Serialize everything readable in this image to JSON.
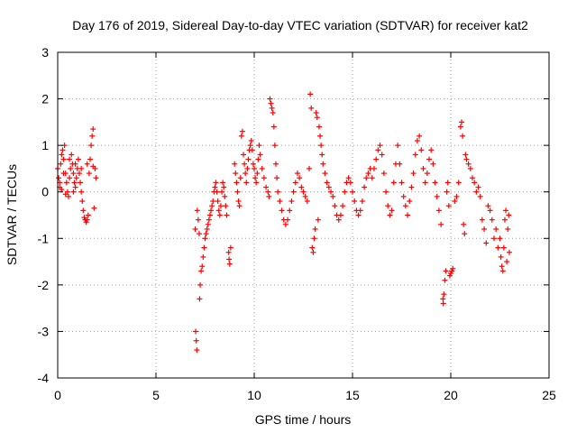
{
  "chart_data": {
    "type": "scatter",
    "title": "Day 176 of 2019, Sidereal Day-to-day VTEC variation (SDTVAR) for receiver kat2",
    "xlabel": "GPS time / hours",
    "ylabel": "SDTVAR / TECUs",
    "xlim": [
      0,
      25
    ],
    "ylim": [
      -4,
      3
    ],
    "xticks": [
      "0",
      "5",
      "10",
      "15",
      "20",
      "25"
    ],
    "yticks": [
      "-4",
      "-3",
      "-2",
      "-1",
      "0",
      "1",
      "2",
      "3"
    ],
    "grid": true,
    "marker": "+",
    "color": "#ff0000",
    "series": [
      {
        "name": "SDTVAR",
        "points": [
          [
            0.0,
            0.5
          ],
          [
            0.05,
            0.3
          ],
          [
            0.1,
            0.1
          ],
          [
            0.15,
            0.6
          ],
          [
            0.2,
            0.8
          ],
          [
            0.25,
            0.9
          ],
          [
            0.3,
            0.7
          ],
          [
            0.35,
            1.0
          ],
          [
            0.4,
            0.4
          ],
          [
            0.45,
            0.2
          ],
          [
            0.5,
            0.0
          ],
          [
            0.55,
            -0.1
          ],
          [
            0.6,
            0.3
          ],
          [
            0.65,
            0.5
          ],
          [
            0.7,
            0.8
          ],
          [
            0.75,
            0.6
          ],
          [
            0.8,
            0.4
          ],
          [
            0.85,
            0.2
          ],
          [
            0.9,
            0.1
          ],
          [
            0.95,
            0.3
          ],
          [
            1.0,
            0.5
          ],
          [
            1.05,
            0.7
          ],
          [
            1.1,
            0.4
          ],
          [
            1.15,
            0.2
          ],
          [
            1.2,
            0.0
          ],
          [
            1.25,
            -0.2
          ],
          [
            1.3,
            -0.4
          ],
          [
            1.35,
            -0.55
          ],
          [
            1.4,
            -0.6
          ],
          [
            1.45,
            -0.65
          ],
          [
            1.5,
            -0.6
          ],
          [
            1.55,
            -0.5
          ],
          [
            1.6,
            0.4
          ],
          [
            1.65,
            0.7
          ],
          [
            1.7,
            1.0
          ],
          [
            1.75,
            1.2
          ],
          [
            1.8,
            1.35
          ],
          [
            1.85,
            -0.35
          ],
          [
            1.9,
            0.5
          ],
          [
            1.95,
            0.3
          ],
          [
            0.1,
            0.2
          ],
          [
            0.3,
            0.4
          ],
          [
            0.6,
            0.7
          ],
          [
            0.9,
            0.6
          ],
          [
            1.2,
            0.5
          ],
          [
            1.5,
            0.6
          ],
          [
            1.8,
            0.55
          ],
          [
            0.2,
            0.05
          ],
          [
            0.4,
            -0.05
          ],
          [
            0.8,
            0.0
          ],
          [
            7.0,
            -0.8
          ],
          [
            7.02,
            -3.0
          ],
          [
            7.05,
            -3.2
          ],
          [
            7.08,
            -3.4
          ],
          [
            7.1,
            -0.4
          ],
          [
            7.15,
            -0.6
          ],
          [
            7.2,
            -0.9
          ],
          [
            7.3,
            -1.7
          ],
          [
            7.35,
            -1.6
          ],
          [
            7.4,
            -1.4
          ],
          [
            7.45,
            -1.2
          ],
          [
            7.5,
            -1.0
          ],
          [
            7.55,
            -0.9
          ],
          [
            7.6,
            -0.8
          ],
          [
            7.65,
            -0.7
          ],
          [
            7.7,
            -0.6
          ],
          [
            7.75,
            -0.5
          ],
          [
            7.8,
            -0.4
          ],
          [
            7.85,
            -0.3
          ],
          [
            7.9,
            -0.2
          ],
          [
            7.95,
            0.0
          ],
          [
            8.0,
            0.1
          ],
          [
            8.05,
            0.2
          ],
          [
            8.1,
            0.0
          ],
          [
            8.15,
            -0.2
          ],
          [
            8.2,
            -0.4
          ],
          [
            8.25,
            -0.5
          ],
          [
            8.3,
            -0.3
          ],
          [
            8.35,
            0.0
          ],
          [
            8.4,
            0.2
          ],
          [
            8.45,
            0.1
          ],
          [
            8.5,
            -0.1
          ],
          [
            8.55,
            -0.3
          ],
          [
            8.6,
            -0.5
          ],
          [
            8.7,
            -1.3
          ],
          [
            8.72,
            -1.45
          ],
          [
            8.75,
            -1.55
          ],
          [
            8.8,
            -1.2
          ],
          [
            7.25,
            -2.0
          ],
          [
            7.22,
            -2.3
          ],
          [
            9.0,
            0.6
          ],
          [
            9.05,
            0.4
          ],
          [
            9.1,
            0.2
          ],
          [
            9.15,
            0.0
          ],
          [
            9.2,
            -0.2
          ],
          [
            9.25,
            -0.3
          ],
          [
            9.3,
            0.3
          ],
          [
            9.35,
            1.2
          ],
          [
            9.4,
            1.3
          ],
          [
            9.45,
            0.8
          ],
          [
            9.5,
            0.6
          ],
          [
            9.55,
            0.4
          ],
          [
            9.6,
            0.2
          ],
          [
            9.65,
            0.5
          ],
          [
            9.7,
            0.7
          ],
          [
            9.75,
            0.9
          ],
          [
            9.8,
            1.0
          ],
          [
            9.85,
            1.1
          ],
          [
            9.9,
            0.9
          ],
          [
            9.95,
            0.6
          ],
          [
            10.0,
            0.5
          ],
          [
            10.05,
            0.3
          ],
          [
            10.1,
            0.2
          ],
          [
            10.15,
            0.4
          ],
          [
            10.2,
            0.7
          ],
          [
            10.25,
            1.0
          ],
          [
            10.3,
            0.8
          ],
          [
            10.4,
            0.5
          ],
          [
            10.5,
            0.3
          ],
          [
            10.6,
            0.1
          ],
          [
            10.7,
            0.0
          ],
          [
            10.75,
            -0.1
          ],
          [
            10.8,
            2.0
          ],
          [
            10.85,
            1.9
          ],
          [
            10.9,
            1.8
          ],
          [
            10.95,
            1.7
          ],
          [
            11.0,
            1.4
          ],
          [
            11.05,
            1.0
          ],
          [
            11.1,
            0.6
          ],
          [
            11.15,
            0.3
          ],
          [
            11.2,
            0.0
          ],
          [
            11.3,
            -0.2
          ],
          [
            11.4,
            -0.4
          ],
          [
            11.5,
            -0.6
          ],
          [
            11.6,
            -0.7
          ],
          [
            11.7,
            -0.6
          ],
          [
            11.8,
            -0.4
          ],
          [
            11.9,
            -0.2
          ],
          [
            12.0,
            0.0
          ],
          [
            12.1,
            0.2
          ],
          [
            12.2,
            0.4
          ],
          [
            12.3,
            0.3
          ],
          [
            12.4,
            0.1
          ],
          [
            12.5,
            0.0
          ],
          [
            12.6,
            -0.1
          ],
          [
            12.7,
            -0.2
          ],
          [
            12.8,
            0.5
          ],
          [
            12.85,
            2.1
          ],
          [
            12.9,
            1.8
          ],
          [
            12.95,
            -1.2
          ],
          [
            13.0,
            -1.3
          ],
          [
            13.05,
            -1.0
          ],
          [
            13.1,
            -0.8
          ],
          [
            13.15,
            1.7
          ],
          [
            13.2,
            1.6
          ],
          [
            13.25,
            -0.6
          ],
          [
            13.3,
            1.4
          ],
          [
            13.35,
            1.2
          ],
          [
            13.4,
            1.0
          ],
          [
            13.45,
            0.8
          ],
          [
            13.5,
            0.6
          ],
          [
            13.6,
            0.4
          ],
          [
            13.7,
            0.2
          ],
          [
            13.8,
            0.1
          ],
          [
            13.9,
            0.0
          ],
          [
            14.0,
            -0.1
          ],
          [
            14.1,
            -0.3
          ],
          [
            14.2,
            -0.5
          ],
          [
            14.3,
            -0.6
          ],
          [
            14.4,
            -0.5
          ],
          [
            14.5,
            -0.3
          ],
          [
            14.6,
            0.0
          ],
          [
            14.7,
            0.2
          ],
          [
            14.8,
            0.3
          ],
          [
            14.9,
            0.2
          ],
          [
            15.0,
            0.0
          ],
          [
            15.1,
            -0.2
          ],
          [
            15.2,
            -0.4
          ],
          [
            15.3,
            -0.5
          ],
          [
            15.4,
            -0.4
          ],
          [
            15.5,
            -0.2
          ],
          [
            15.6,
            0.1
          ],
          [
            15.7,
            0.3
          ],
          [
            15.8,
            0.4
          ],
          [
            15.9,
            0.5
          ],
          [
            16.0,
            0.3
          ],
          [
            16.1,
            0.5
          ],
          [
            16.2,
            0.7
          ],
          [
            16.3,
            0.9
          ],
          [
            16.4,
            1.0
          ],
          [
            16.5,
            0.8
          ],
          [
            16.6,
            0.4
          ],
          [
            16.7,
            0.0
          ],
          [
            16.8,
            -0.3
          ],
          [
            16.9,
            -0.5
          ],
          [
            17.0,
            -0.4
          ],
          [
            17.1,
            0.2
          ],
          [
            17.2,
            0.6
          ],
          [
            17.3,
            1.0
          ],
          [
            17.4,
            0.6
          ],
          [
            17.5,
            0.2
          ],
          [
            17.6,
            -0.1
          ],
          [
            17.7,
            -0.3
          ],
          [
            17.8,
            -0.5
          ],
          [
            17.9,
            -0.2
          ],
          [
            18.0,
            0.1
          ],
          [
            18.1,
            0.4
          ],
          [
            18.2,
            0.8
          ],
          [
            18.3,
            1.1
          ],
          [
            18.4,
            1.2
          ],
          [
            18.5,
            0.9
          ],
          [
            18.6,
            0.5
          ],
          [
            18.7,
            0.2
          ],
          [
            18.8,
            0.4
          ],
          [
            18.9,
            0.7
          ],
          [
            19.0,
            0.9
          ],
          [
            19.1,
            0.6
          ],
          [
            19.2,
            0.2
          ],
          [
            19.3,
            -0.1
          ],
          [
            19.4,
            -0.4
          ],
          [
            19.5,
            -0.7
          ],
          [
            19.6,
            -2.3
          ],
          [
            19.62,
            -2.4
          ],
          [
            19.65,
            -2.2
          ],
          [
            19.7,
            -1.9
          ],
          [
            19.75,
            -1.7
          ],
          [
            19.8,
            0.0
          ],
          [
            19.85,
            0.2
          ],
          [
            19.9,
            -0.3
          ],
          [
            19.95,
            -1.8
          ],
          [
            20.0,
            -1.75
          ],
          [
            20.05,
            -1.7
          ],
          [
            20.1,
            -1.65
          ],
          [
            20.2,
            -0.2
          ],
          [
            20.3,
            -0.1
          ],
          [
            20.4,
            0.2
          ],
          [
            20.5,
            1.4
          ],
          [
            20.55,
            1.5
          ],
          [
            20.6,
            1.2
          ],
          [
            20.65,
            -0.7
          ],
          [
            20.7,
            -0.9
          ],
          [
            20.75,
            0.8
          ],
          [
            20.8,
            0.7
          ],
          [
            20.9,
            0.6
          ],
          [
            21.0,
            0.5
          ],
          [
            21.1,
            0.3
          ],
          [
            21.2,
            0.2
          ],
          [
            21.3,
            0.0
          ],
          [
            21.4,
            0.1
          ],
          [
            21.5,
            -0.1
          ],
          [
            21.6,
            -0.6
          ],
          [
            21.7,
            -0.8
          ],
          [
            21.8,
            -1.1
          ],
          [
            21.9,
            -0.3
          ],
          [
            22.0,
            -0.4
          ],
          [
            22.1,
            -0.6
          ],
          [
            22.2,
            -1.0
          ],
          [
            22.3,
            -0.8
          ],
          [
            22.4,
            -1.2
          ],
          [
            22.5,
            -1.0
          ],
          [
            22.55,
            -1.4
          ],
          [
            22.6,
            -1.6
          ],
          [
            22.65,
            -1.7
          ],
          [
            22.7,
            -1.2
          ],
          [
            22.75,
            -0.6
          ],
          [
            22.8,
            -0.4
          ],
          [
            22.85,
            -1.5
          ],
          [
            22.9,
            -0.8
          ],
          [
            22.95,
            -0.5
          ],
          [
            22.98,
            -1.3
          ]
        ]
      }
    ]
  }
}
